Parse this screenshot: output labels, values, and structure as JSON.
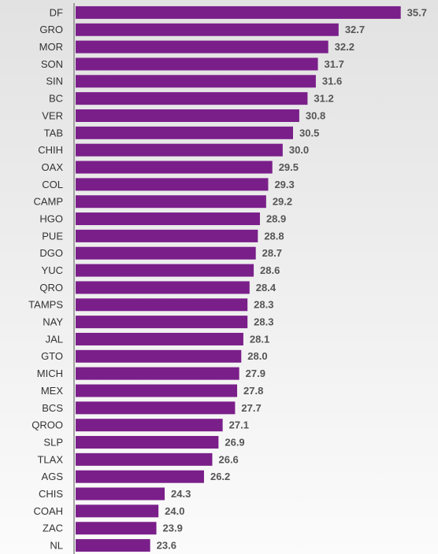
{
  "chart_data": {
    "type": "bar",
    "orientation": "horizontal",
    "categories": [
      "DF",
      "GRO",
      "MOR",
      "SON",
      "SIN",
      "BC",
      "VER",
      "TAB",
      "CHIH",
      "OAX",
      "COL",
      "CAMP",
      "HGO",
      "PUE",
      "DGO",
      "YUC",
      "QRO",
      "TAMPS",
      "NAY",
      "JAL",
      "GTO",
      "MICH",
      "MEX",
      "BCS",
      "QROO",
      "SLP",
      "TLAX",
      "AGS",
      "CHIS",
      "COAH",
      "ZAC",
      "NL"
    ],
    "values": [
      35.7,
      32.7,
      32.2,
      31.7,
      31.6,
      31.2,
      30.8,
      30.5,
      30.0,
      29.5,
      29.3,
      29.2,
      28.9,
      28.8,
      28.7,
      28.6,
      28.4,
      28.3,
      28.3,
      28.1,
      28.0,
      27.9,
      27.8,
      27.7,
      27.1,
      26.9,
      26.6,
      26.2,
      24.3,
      24.0,
      23.9,
      23.6
    ],
    "value_labels": [
      "35.7",
      "32.7",
      "32.2",
      "31.7",
      "31.6",
      "31.2",
      "30.8",
      "30.5",
      "30.0",
      "29.5",
      "29.3",
      "29.2",
      "28.9",
      "28.8",
      "28.7",
      "28.6",
      "28.4",
      "28.3",
      "28.3",
      "28.1",
      "28.0",
      "27.9",
      "27.8",
      "27.7",
      "27.1",
      "26.9",
      "26.6",
      "26.2",
      "24.3",
      "24.0",
      "23.9",
      "23.6"
    ],
    "color": "#7a1f8a",
    "xlim": [
      20,
      37.5
    ]
  }
}
